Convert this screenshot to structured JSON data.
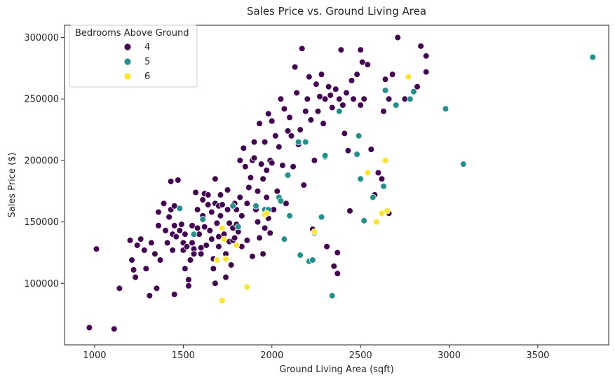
{
  "chart_data": {
    "type": "scatter",
    "title": "Sales Price vs. Ground Living Area",
    "xlabel": "Ground Living Area (sqft)",
    "ylabel": "Sales Price ($)",
    "xlim": [
      830,
      3900
    ],
    "ylim": [
      50000,
      310000
    ],
    "xticks": [
      1000,
      1500,
      2000,
      2500,
      3000,
      3500
    ],
    "yticks": [
      100000,
      150000,
      200000,
      250000,
      300000
    ],
    "grid": false,
    "legend": {
      "title": "Bedrooms Above Ground",
      "placement": "top-left"
    },
    "series": [
      {
        "name": "4",
        "color": "#440154",
        "points": [
          [
            970,
            64000
          ],
          [
            1110,
            63000
          ],
          [
            1010,
            128000
          ],
          [
            1140,
            96000
          ],
          [
            1200,
            135000
          ],
          [
            1210,
            119000
          ],
          [
            1220,
            111000
          ],
          [
            1230,
            105000
          ],
          [
            1240,
            131000
          ],
          [
            1260,
            136000
          ],
          [
            1280,
            127000
          ],
          [
            1290,
            112000
          ],
          [
            1310,
            90000
          ],
          [
            1320,
            133000
          ],
          [
            1340,
            124000
          ],
          [
            1350,
            96000
          ],
          [
            1360,
            147000
          ],
          [
            1360,
            158000
          ],
          [
            1370,
            119000
          ],
          [
            1390,
            165000
          ],
          [
            1400,
            143000
          ],
          [
            1410,
            133000
          ],
          [
            1420,
            154000
          ],
          [
            1430,
            183000
          ],
          [
            1430,
            160000
          ],
          [
            1440,
            140000
          ],
          [
            1440,
            127000
          ],
          [
            1450,
            163000
          ],
          [
            1450,
            147000
          ],
          [
            1450,
            91000
          ],
          [
            1460,
            138000
          ],
          [
            1470,
            184000
          ],
          [
            1480,
            143000
          ],
          [
            1490,
            148000
          ],
          [
            1500,
            133000
          ],
          [
            1500,
            127000
          ],
          [
            1510,
            140000
          ],
          [
            1510,
            112000
          ],
          [
            1520,
            130000
          ],
          [
            1530,
            103000
          ],
          [
            1530,
            98000
          ],
          [
            1540,
            119000
          ],
          [
            1550,
            147000
          ],
          [
            1550,
            133000
          ],
          [
            1560,
            128000
          ],
          [
            1560,
            124000
          ],
          [
            1570,
            174000
          ],
          [
            1580,
            160000
          ],
          [
            1580,
            145000
          ],
          [
            1590,
            140000
          ],
          [
            1600,
            129000
          ],
          [
            1600,
            124000
          ],
          [
            1610,
            168000
          ],
          [
            1610,
            155000
          ],
          [
            1620,
            173000
          ],
          [
            1620,
            146000
          ],
          [
            1630,
            131000
          ],
          [
            1640,
            172000
          ],
          [
            1640,
            164000
          ],
          [
            1650,
            143000
          ],
          [
            1660,
            158000
          ],
          [
            1660,
            136000
          ],
          [
            1670,
            120000
          ],
          [
            1670,
            112000
          ],
          [
            1680,
            185000
          ],
          [
            1680,
            165000
          ],
          [
            1680,
            100000
          ],
          [
            1690,
            149000
          ],
          [
            1700,
            163000
          ],
          [
            1700,
            138000
          ],
          [
            1700,
            130000
          ],
          [
            1710,
            172000
          ],
          [
            1710,
            155000
          ],
          [
            1720,
            164000
          ],
          [
            1720,
            145000
          ],
          [
            1730,
            140000
          ],
          [
            1740,
            124000
          ],
          [
            1740,
            105000
          ],
          [
            1750,
            176000
          ],
          [
            1750,
            160000
          ],
          [
            1760,
            149000
          ],
          [
            1760,
            134000
          ],
          [
            1770,
            115000
          ],
          [
            1780,
            145000
          ],
          [
            1780,
            135000
          ],
          [
            1790,
            165000
          ],
          [
            1790,
            137000
          ],
          [
            1800,
            160000
          ],
          [
            1800,
            148000
          ],
          [
            1810,
            142000
          ],
          [
            1820,
            200000
          ],
          [
            1820,
            170000
          ],
          [
            1830,
            130000
          ],
          [
            1830,
            155000
          ],
          [
            1840,
            210000
          ],
          [
            1850,
            195000
          ],
          [
            1860,
            165000
          ],
          [
            1860,
            135000
          ],
          [
            1870,
            178000
          ],
          [
            1880,
            186000
          ],
          [
            1890,
            200000
          ],
          [
            1890,
            122000
          ],
          [
            1900,
            215000
          ],
          [
            1900,
            202000
          ],
          [
            1910,
            160000
          ],
          [
            1920,
            175000
          ],
          [
            1920,
            150000
          ],
          [
            1930,
            230000
          ],
          [
            1930,
            137000
          ],
          [
            1940,
            197000
          ],
          [
            1950,
            185000
          ],
          [
            1950,
            124000
          ],
          [
            1960,
            215000
          ],
          [
            1960,
            145000
          ],
          [
            1970,
            192000
          ],
          [
            1970,
            170000
          ],
          [
            1980,
            238000
          ],
          [
            1980,
            153000
          ],
          [
            1990,
            200000
          ],
          [
            1990,
            141000
          ],
          [
            2000,
            232000
          ],
          [
            2000,
            198000
          ],
          [
            2010,
            160000
          ],
          [
            2020,
            220000
          ],
          [
            2030,
            175000
          ],
          [
            2040,
            211000
          ],
          [
            2050,
            250000
          ],
          [
            2060,
            196000
          ],
          [
            2070,
            242000
          ],
          [
            2080,
            165000
          ],
          [
            2090,
            224000
          ],
          [
            2100,
            235000
          ],
          [
            2110,
            220000
          ],
          [
            2120,
            195000
          ],
          [
            2130,
            276000
          ],
          [
            2140,
            255000
          ],
          [
            2150,
            213000
          ],
          [
            2160,
            225000
          ],
          [
            2170,
            291000
          ],
          [
            2180,
            180000
          ],
          [
            2190,
            240000
          ],
          [
            2200,
            250000
          ],
          [
            2210,
            268000
          ],
          [
            2220,
            233000
          ],
          [
            2230,
            144000
          ],
          [
            2240,
            200000
          ],
          [
            2250,
            262000
          ],
          [
            2260,
            240000
          ],
          [
            2270,
            252000
          ],
          [
            2280,
            270000
          ],
          [
            2290,
            230000
          ],
          [
            2300,
            250000
          ],
          [
            2310,
            130000
          ],
          [
            2320,
            260000
          ],
          [
            2330,
            253000
          ],
          [
            2340,
            243000
          ],
          [
            2350,
            114000
          ],
          [
            2360,
            258000
          ],
          [
            2370,
            108000
          ],
          [
            2380,
            250000
          ],
          [
            2390,
            290000
          ],
          [
            2400,
            245000
          ],
          [
            2410,
            222000
          ],
          [
            2420,
            255000
          ],
          [
            2430,
            208000
          ],
          [
            2440,
            159000
          ],
          [
            2450,
            265000
          ],
          [
            2460,
            250000
          ],
          [
            2480,
            270000
          ],
          [
            2500,
            245000
          ],
          [
            2500,
            290000
          ],
          [
            2510,
            280000
          ],
          [
            2520,
            250000
          ],
          [
            2540,
            278000
          ],
          [
            2560,
            209000
          ],
          [
            2580,
            172000
          ],
          [
            2600,
            190000
          ],
          [
            2620,
            185000
          ],
          [
            2630,
            240000
          ],
          [
            2640,
            266000
          ],
          [
            2660,
            250000
          ],
          [
            2680,
            270000
          ],
          [
            2710,
            300000
          ],
          [
            2750,
            250000
          ],
          [
            2820,
            260000
          ],
          [
            2840,
            293000
          ],
          [
            2870,
            285000
          ],
          [
            2870,
            272000
          ],
          [
            2660,
            157000
          ],
          [
            2370,
            125000
          ]
        ]
      },
      {
        "name": "5",
        "color": "#21918c",
        "points": [
          [
            1480,
            161000
          ],
          [
            1560,
            140000
          ],
          [
            1610,
            152000
          ],
          [
            1780,
            163000
          ],
          [
            1810,
            146000
          ],
          [
            1910,
            163000
          ],
          [
            1960,
            160000
          ],
          [
            1980,
            160000
          ],
          [
            2040,
            170000
          ],
          [
            2050,
            167000
          ],
          [
            2070,
            136000
          ],
          [
            2090,
            188000
          ],
          [
            2100,
            155000
          ],
          [
            2150,
            215000
          ],
          [
            2160,
            123000
          ],
          [
            2190,
            215000
          ],
          [
            2210,
            118000
          ],
          [
            2230,
            119000
          ],
          [
            2240,
            141000
          ],
          [
            2280,
            154000
          ],
          [
            2300,
            203000
          ],
          [
            2300,
            204000
          ],
          [
            2340,
            90000
          ],
          [
            2380,
            240000
          ],
          [
            2480,
            205000
          ],
          [
            2490,
            220000
          ],
          [
            2500,
            185000
          ],
          [
            2520,
            151000
          ],
          [
            2570,
            170000
          ],
          [
            2630,
            179000
          ],
          [
            2640,
            257000
          ],
          [
            2780,
            250000
          ],
          [
            2800,
            256000
          ],
          [
            2980,
            242000
          ],
          [
            3080,
            197000
          ],
          [
            3810,
            284000
          ],
          [
            2700,
            245000
          ]
        ]
      },
      {
        "name": "6",
        "color": "#fde725",
        "points": [
          [
            1690,
            119000
          ],
          [
            1720,
            86000
          ],
          [
            1720,
            145000
          ],
          [
            1730,
            136000
          ],
          [
            1740,
            120000
          ],
          [
            1800,
            131000
          ],
          [
            1860,
            97000
          ],
          [
            1960,
            156000
          ],
          [
            1970,
            157000
          ],
          [
            2240,
            142000
          ],
          [
            2540,
            190000
          ],
          [
            2590,
            150000
          ],
          [
            2620,
            157000
          ],
          [
            2640,
            200000
          ],
          [
            2650,
            159000
          ],
          [
            2770,
            268000
          ]
        ]
      }
    ]
  }
}
